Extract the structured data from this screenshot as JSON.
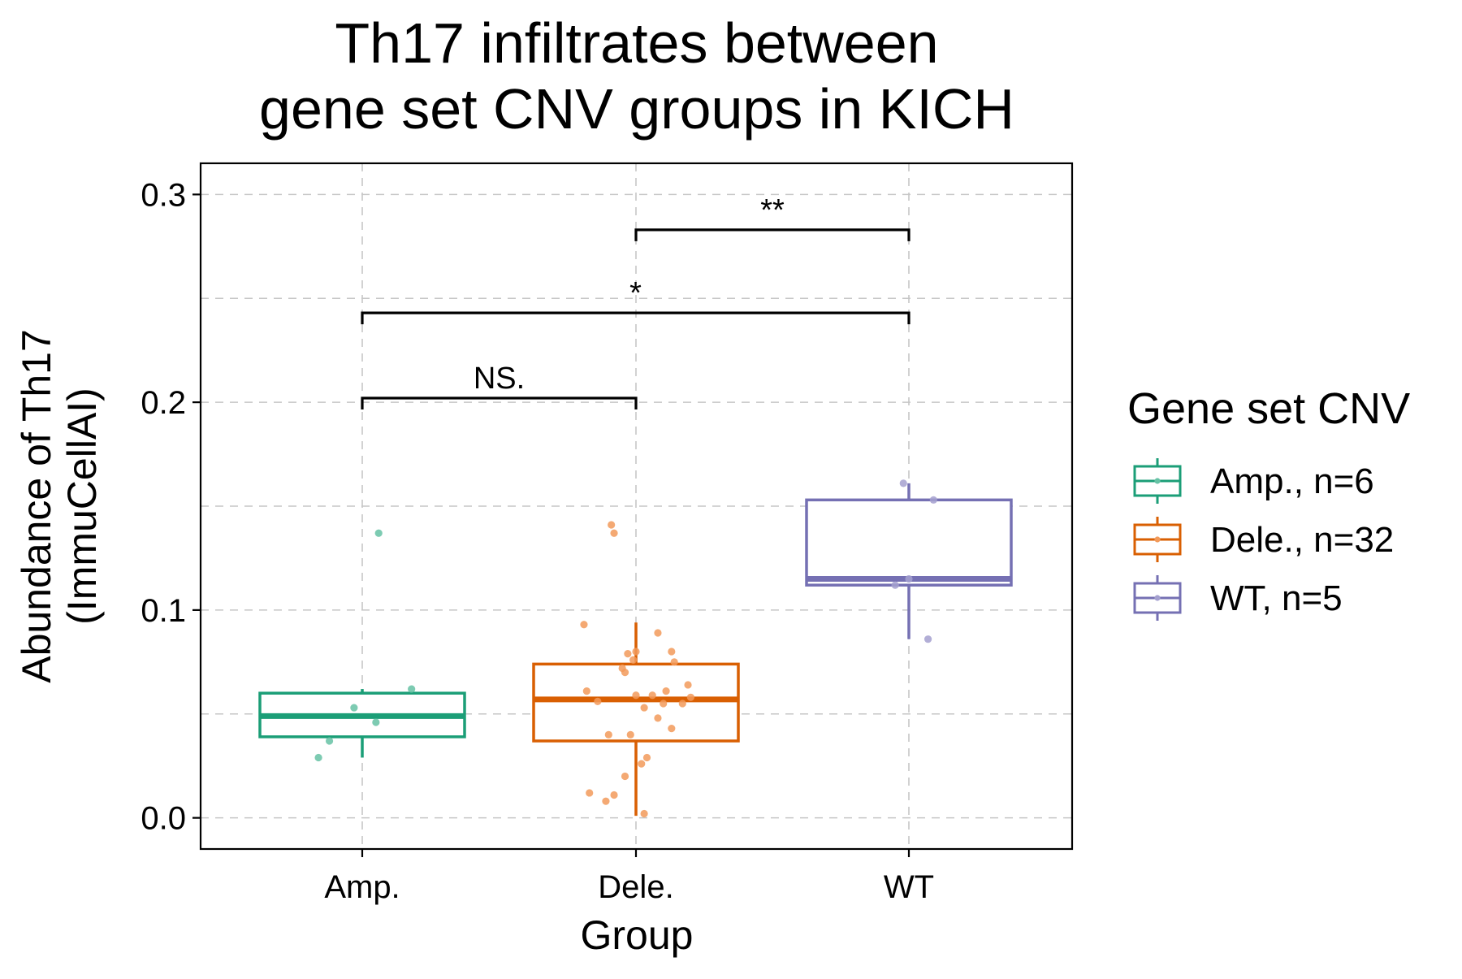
{
  "chart_data": {
    "type": "box",
    "title_lines": [
      "Th17 infiltrates between",
      "gene set CNV groups in KICH"
    ],
    "xlabel": "Group",
    "ylabel_lines": [
      "Abundance of Th17",
      "(ImmuCellAI)"
    ],
    "categories": [
      "Amp.",
      "Dele.",
      "WT"
    ],
    "ylim": [
      -0.015,
      0.315
    ],
    "yticks": [
      0.0,
      0.1,
      0.2,
      0.3
    ],
    "ytick_labels": [
      "0.0",
      "0.1",
      "0.2",
      "0.3"
    ],
    "grid": true,
    "legend": {
      "title": "Gene set CNV",
      "position": "right",
      "items": [
        "Amp., n=6",
        "Dele., n=32",
        "WT, n=5"
      ]
    },
    "series": [
      {
        "name": "Amp., n=6",
        "category": "Amp.",
        "color": "#1b9e77",
        "point_color": "#66c2a5",
        "box": {
          "whisker_low": 0.029,
          "q1": 0.039,
          "median": 0.049,
          "q3": 0.06,
          "whisker_high": 0.062
        },
        "points": [
          {
            "offset": -0.16,
            "y": 0.029
          },
          {
            "offset": -0.12,
            "y": 0.037
          },
          {
            "offset": -0.03,
            "y": 0.053
          },
          {
            "offset": 0.05,
            "y": 0.046
          },
          {
            "offset": 0.06,
            "y": 0.137
          },
          {
            "offset": 0.18,
            "y": 0.062
          }
        ]
      },
      {
        "name": "Dele., n=32",
        "category": "Dele.",
        "color": "#d95f02",
        "point_color": "#f29a5a",
        "box": {
          "whisker_low": 0.001,
          "q1": 0.037,
          "median": 0.057,
          "q3": 0.074,
          "whisker_high": 0.094
        },
        "points": [
          {
            "offset": -0.19,
            "y": 0.093
          },
          {
            "offset": -0.18,
            "y": 0.061
          },
          {
            "offset": -0.17,
            "y": 0.012
          },
          {
            "offset": -0.14,
            "y": 0.056
          },
          {
            "offset": -0.11,
            "y": 0.008
          },
          {
            "offset": -0.1,
            "y": 0.04
          },
          {
            "offset": -0.09,
            "y": 0.141
          },
          {
            "offset": -0.08,
            "y": 0.137
          },
          {
            "offset": -0.08,
            "y": 0.011
          },
          {
            "offset": -0.05,
            "y": 0.072
          },
          {
            "offset": -0.04,
            "y": 0.07
          },
          {
            "offset": -0.04,
            "y": 0.02
          },
          {
            "offset": -0.03,
            "y": 0.079
          },
          {
            "offset": -0.02,
            "y": 0.04
          },
          {
            "offset": -0.01,
            "y": 0.076
          },
          {
            "offset": 0.0,
            "y": 0.059
          },
          {
            "offset": 0.0,
            "y": 0.08
          },
          {
            "offset": 0.02,
            "y": 0.026
          },
          {
            "offset": 0.03,
            "y": 0.053
          },
          {
            "offset": 0.03,
            "y": 0.002
          },
          {
            "offset": 0.04,
            "y": 0.029
          },
          {
            "offset": 0.06,
            "y": 0.059
          },
          {
            "offset": 0.08,
            "y": 0.048
          },
          {
            "offset": 0.08,
            "y": 0.089
          },
          {
            "offset": 0.1,
            "y": 0.055
          },
          {
            "offset": 0.11,
            "y": 0.061
          },
          {
            "offset": 0.13,
            "y": 0.08
          },
          {
            "offset": 0.13,
            "y": 0.043
          },
          {
            "offset": 0.14,
            "y": 0.075
          },
          {
            "offset": 0.17,
            "y": 0.055
          },
          {
            "offset": 0.19,
            "y": 0.064
          },
          {
            "offset": 0.2,
            "y": 0.058
          }
        ]
      },
      {
        "name": "WT, n=5",
        "category": "WT",
        "color": "#7570b3",
        "point_color": "#a4a0cf",
        "box": {
          "whisker_low": 0.086,
          "q1": 0.112,
          "median": 0.115,
          "q3": 0.153,
          "whisker_high": 0.161
        },
        "points": [
          {
            "offset": -0.05,
            "y": 0.112
          },
          {
            "offset": -0.02,
            "y": 0.161
          },
          {
            "offset": 0.0,
            "y": 0.115
          },
          {
            "offset": 0.07,
            "y": 0.086
          },
          {
            "offset": 0.09,
            "y": 0.153
          }
        ]
      }
    ],
    "comparisons": [
      {
        "from": "Amp.",
        "to": "Dele.",
        "y": 0.202,
        "label": "NS."
      },
      {
        "from": "Amp.",
        "to": "WT",
        "y": 0.243,
        "label": "*"
      },
      {
        "from": "Dele.",
        "to": "WT",
        "y": 0.283,
        "label": "**"
      }
    ]
  }
}
